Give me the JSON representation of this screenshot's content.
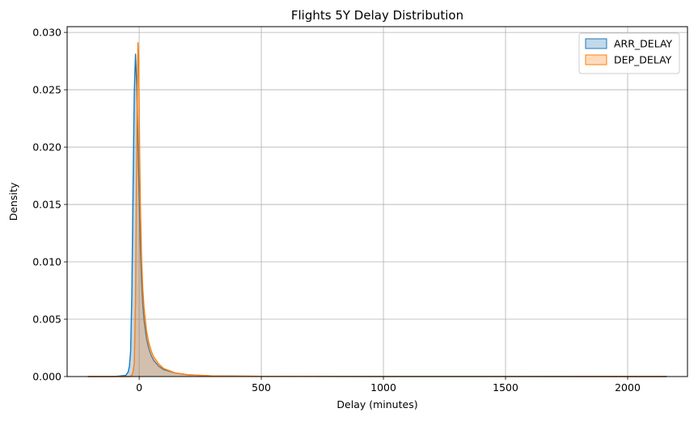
{
  "chart_data": {
    "type": "area",
    "title": "Flights 5Y Delay Distribution",
    "xlabel": "Delay (minutes)",
    "ylabel": "Density",
    "xlim": [
      -295,
      2245
    ],
    "ylim": [
      0,
      0.0305
    ],
    "xticks": [
      0,
      500,
      1000,
      1500,
      2000
    ],
    "xtick_labels": [
      "0",
      "500",
      "1000",
      "1500",
      "2000"
    ],
    "yticks": [
      0,
      0.005,
      0.01,
      0.015,
      0.02,
      0.025,
      0.03
    ],
    "ytick_labels": [
      "0.000",
      "0.005",
      "0.010",
      "0.015",
      "0.020",
      "0.025",
      "0.030"
    ],
    "grid": true,
    "legend_position": "top-right",
    "series": [
      {
        "name": "ARR_DELAY",
        "color": "#1f77b4",
        "x": [
          -210,
          -100,
          -55,
          -45,
          -40,
          -35,
          -30,
          -25,
          -20,
          -15,
          -10,
          -5,
          0,
          5,
          10,
          15,
          20,
          30,
          40,
          50,
          60,
          80,
          100,
          150,
          200,
          300,
          500,
          1000,
          1500,
          2160
        ],
        "y": [
          0,
          0,
          0.0001,
          0.0004,
          0.0009,
          0.0022,
          0.0072,
          0.0165,
          0.0248,
          0.0281,
          0.0255,
          0.0205,
          0.0155,
          0.0112,
          0.0082,
          0.0062,
          0.0049,
          0.0033,
          0.0024,
          0.0018,
          0.0014,
          0.0009,
          0.0006,
          0.0003,
          0.00015,
          5e-05,
          2e-05,
          5e-06,
          2e-06,
          0
        ]
      },
      {
        "name": "DEP_DELAY",
        "color": "#ff7f0e",
        "x": [
          -210,
          -100,
          -40,
          -30,
          -25,
          -20,
          -15,
          -10,
          -5,
          -2,
          0,
          2,
          5,
          10,
          15,
          20,
          30,
          40,
          50,
          60,
          80,
          100,
          150,
          200,
          300,
          500,
          1000,
          1500,
          2160
        ],
        "y": [
          0,
          0,
          0,
          0.0001,
          0.0004,
          0.0012,
          0.0065,
          0.0205,
          0.0291,
          0.0278,
          0.0238,
          0.0195,
          0.0148,
          0.0102,
          0.0076,
          0.006,
          0.004,
          0.0029,
          0.0022,
          0.0017,
          0.0011,
          0.0007,
          0.0003,
          0.00015,
          6e-05,
          2e-05,
          6e-06,
          2e-06,
          0
        ]
      }
    ]
  }
}
